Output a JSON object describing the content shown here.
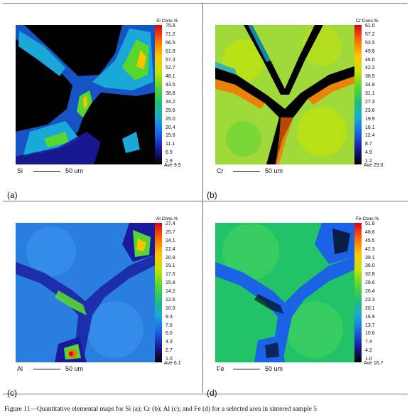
{
  "caption": "Figure 11—Quantitative elemental maps for Si (a); Cr (b); Al (c); and Fe (d) for a selected area in sintered sample 5",
  "scale_bar_label": "50 um",
  "colormap": [
    "#d9001e",
    "#ff6a00",
    "#ffc400",
    "#c8e400",
    "#58d630",
    "#1fbf78",
    "#19a8d8",
    "#1a62e6",
    "#1a1aa0",
    "#000000"
  ],
  "panels": [
    {
      "label": "(a)",
      "element": "Si",
      "cbar_title": "Si Conc.%",
      "ticks": [
        "75.8",
        "71.2",
        "66.5",
        "61.9",
        "57.3",
        "52.7",
        "48.1",
        "43.5",
        "38.8",
        "34.2",
        "29.6",
        "25.0",
        "20.4",
        "15.8",
        "11.1",
        "6.5",
        "1.9"
      ],
      "ave": "Ave 9.5",
      "background": "#000000"
    },
    {
      "label": "(b)",
      "element": "Cr",
      "cbar_title": "Cr Conc.%",
      "ticks": [
        "61.0",
        "57.2",
        "53.5",
        "49.8",
        "46.0",
        "42.3",
        "38.5",
        "34.8",
        "31.1",
        "27.3",
        "23.6",
        "19.9",
        "16.1",
        "12.4",
        "8.7",
        "4.9",
        "1.2"
      ],
      "ave": "Ave 29.0",
      "background": "#9fd93a"
    },
    {
      "label": "(c)",
      "element": "Al",
      "cbar_title": "Al Conc.%",
      "ticks": [
        "27.4",
        "25.7",
        "24.1",
        "22.4",
        "20.8",
        "19.1",
        "17.5",
        "15.8",
        "14.2",
        "12.6",
        "10.9",
        "9.3",
        "7.6",
        "6.0",
        "4.3",
        "2.7",
        "1.0"
      ],
      "ave": "Ave 6.1",
      "background": "#2a7ee0"
    },
    {
      "label": "(d)",
      "element": "Fe",
      "cbar_title": "Fe Conc.%",
      "ticks": [
        "51.8",
        "48.6",
        "45.5",
        "42.3",
        "39.1",
        "36.0",
        "32.8",
        "29.6",
        "26.4",
        "23.3",
        "20.1",
        "16.9",
        "13.7",
        "10.6",
        "7.4",
        "4.2",
        "1.0"
      ],
      "ave": "Ave 16.7",
      "background": "#22c268"
    }
  ]
}
